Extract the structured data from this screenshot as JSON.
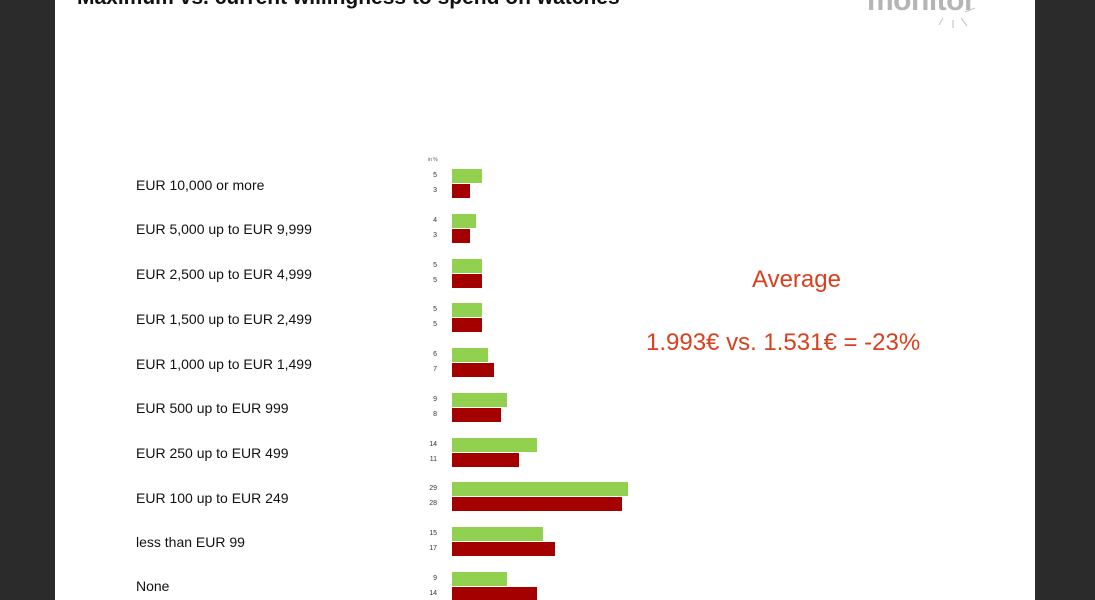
{
  "title": "Maximum vs. current willingness to spend on watches",
  "logo_text": "monitor",
  "average": {
    "label": "Average",
    "comparison": "1.993€ vs. 1.531€ = -23%"
  },
  "colors": {
    "maximum": "#92d050",
    "current": "#a50000",
    "average_text": "#d9401f"
  },
  "chart_data": {
    "type": "bar",
    "orientation": "horizontal",
    "unit_label": "in %",
    "categories": [
      "EUR 10,000 or more",
      "EUR 5,000 up to EUR 9,999",
      "EUR 2,500 up to EUR 4,999",
      "EUR 1,500 up to EUR 2,499",
      "EUR 1,000 up to EUR 1,499",
      "EUR 500 up to EUR 999",
      "EUR 250 up to EUR 499",
      "EUR 100 up to EUR 249",
      "less than EUR 99",
      "None"
    ],
    "series": [
      {
        "values": [
          5,
          4,
          5,
          5,
          6,
          9,
          14,
          29,
          15,
          9
        ],
        "color": "#92d050"
      },
      {
        "values": [
          3,
          3,
          5,
          5,
          7,
          8,
          11,
          28,
          17,
          14
        ],
        "color": "#a50000"
      }
    ],
    "value_labels": [
      [
        "5",
        "4",
        "5",
        "5",
        "6",
        "9",
        "14",
        "29",
        "15",
        "9"
      ],
      [
        "3",
        "3",
        "5",
        "5",
        "7",
        "8",
        "11",
        "28",
        "17",
        "14"
      ]
    ],
    "xlim": [
      0,
      30
    ],
    "grid": false,
    "legend": "none"
  }
}
